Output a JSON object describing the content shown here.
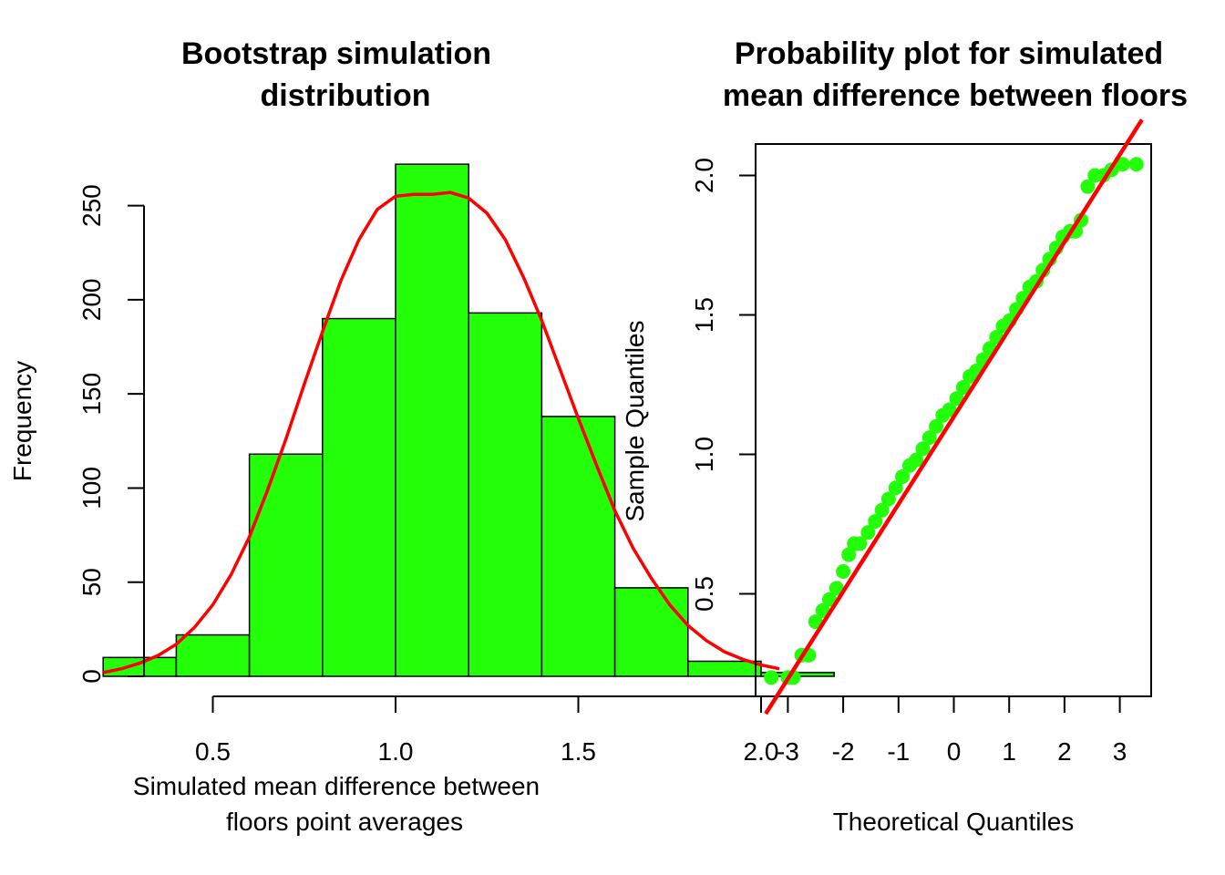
{
  "colors": {
    "bar_fill": "#22ff08",
    "bar_stroke": "#000000",
    "curve": "#ff0000",
    "points": "#22ff08",
    "qq_line": "#ff0000",
    "axis": "#000000"
  },
  "chart_data": [
    {
      "type": "bar",
      "subtype": "histogram",
      "title_lines": [
        "Bootstrap simulation",
        "distribution"
      ],
      "xlabel_lines": [
        "Simulated mean difference between",
        "floors point averages"
      ],
      "ylabel": "Frequency",
      "bins": [
        {
          "start": 0.2,
          "end": 0.4,
          "count": 10
        },
        {
          "start": 0.4,
          "end": 0.6,
          "count": 22
        },
        {
          "start": 0.6,
          "end": 0.8,
          "count": 118
        },
        {
          "start": 0.8,
          "end": 1.0,
          "count": 190
        },
        {
          "start": 1.0,
          "end": 1.2,
          "count": 272
        },
        {
          "start": 1.2,
          "end": 1.4,
          "count": 193
        },
        {
          "start": 1.4,
          "end": 1.6,
          "count": 138
        },
        {
          "start": 1.6,
          "end": 1.8,
          "count": 47
        },
        {
          "start": 1.8,
          "end": 2.0,
          "count": 8
        },
        {
          "start": 2.0,
          "end": 2.2,
          "count": 2
        }
      ],
      "density_curve": {
        "x": [
          0.2,
          0.25,
          0.3,
          0.35,
          0.4,
          0.45,
          0.5,
          0.55,
          0.6,
          0.65,
          0.7,
          0.75,
          0.8,
          0.85,
          0.9,
          0.95,
          1.0,
          1.05,
          1.1,
          1.15,
          1.2,
          1.25,
          1.3,
          1.35,
          1.4,
          1.45,
          1.5,
          1.55,
          1.6,
          1.65,
          1.7,
          1.75,
          1.8,
          1.85,
          1.9,
          1.95,
          2.0,
          2.05
        ],
        "y": [
          2,
          4,
          7,
          11,
          17,
          26,
          38,
          54,
          74,
          99,
          126,
          155,
          183,
          210,
          232,
          248,
          255,
          256,
          256,
          257,
          254,
          246,
          232,
          212,
          189,
          163,
          137,
          112,
          88,
          68,
          52,
          38,
          27,
          19,
          13,
          9,
          6,
          4
        ]
      },
      "x_ticks": [
        0.5,
        1.0,
        1.5,
        2.0
      ],
      "x_tick_labels": [
        "0.5",
        "1.0",
        "1.5",
        "2.0"
      ],
      "y_ticks": [
        0,
        50,
        100,
        150,
        200,
        250
      ],
      "y_tick_labels": [
        "0",
        "50",
        "100",
        "150",
        "200",
        "250"
      ],
      "xlim": [
        0.2,
        2.2
      ],
      "ylim": [
        0,
        272
      ]
    },
    {
      "type": "scatter",
      "subtype": "qq_plot",
      "title_lines": [
        "Probability plot for simulated",
        "mean difference between floors"
      ],
      "xlabel": "Theoretical Quantiles",
      "ylabel": "Sample Quantiles",
      "points": {
        "x": [
          -3.3,
          -3.0,
          -2.9,
          -2.75,
          -2.62,
          -2.5,
          -2.37,
          -2.25,
          -2.12,
          -2.0,
          -1.9,
          -1.8,
          -1.7,
          -1.55,
          -1.42,
          -1.3,
          -1.18,
          -1.05,
          -0.93,
          -0.8,
          -0.68,
          -0.56,
          -0.44,
          -0.32,
          -0.2,
          -0.08,
          0.05,
          0.17,
          0.29,
          0.41,
          0.53,
          0.65,
          0.77,
          0.89,
          1.01,
          1.13,
          1.25,
          1.37,
          1.49,
          1.61,
          1.73,
          1.85,
          1.97,
          2.1,
          2.2,
          2.3,
          2.42,
          2.55,
          2.7,
          2.85,
          3.05,
          3.3
        ],
        "y": [
          0.2,
          0.2,
          0.2,
          0.28,
          0.28,
          0.4,
          0.44,
          0.48,
          0.52,
          0.58,
          0.64,
          0.68,
          0.68,
          0.72,
          0.76,
          0.8,
          0.84,
          0.88,
          0.92,
          0.96,
          0.98,
          1.02,
          1.06,
          1.1,
          1.14,
          1.16,
          1.2,
          1.24,
          1.28,
          1.3,
          1.34,
          1.38,
          1.42,
          1.46,
          1.48,
          1.52,
          1.56,
          1.6,
          1.62,
          1.66,
          1.7,
          1.74,
          1.78,
          1.8,
          1.8,
          1.84,
          1.96,
          2.0,
          2.0,
          2.02,
          2.04,
          2.04
        ]
      },
      "reference_line": {
        "x": [
          -3.4,
          3.4
        ],
        "y": [
          0.07,
          2.2
        ]
      },
      "x_ticks": [
        -3,
        -2,
        -1,
        0,
        1,
        2,
        3
      ],
      "x_tick_labels": [
        "-3",
        "-2",
        "-1",
        "0",
        "1",
        "2",
        "3"
      ],
      "y_ticks": [
        0.5,
        1.0,
        1.5,
        2.0
      ],
      "y_tick_labels": [
        "0.5",
        "1.0",
        "1.5",
        "2.0"
      ],
      "xlim": [
        -3.57,
        3.57
      ],
      "ylim": [
        0.12,
        2.12
      ]
    }
  ]
}
